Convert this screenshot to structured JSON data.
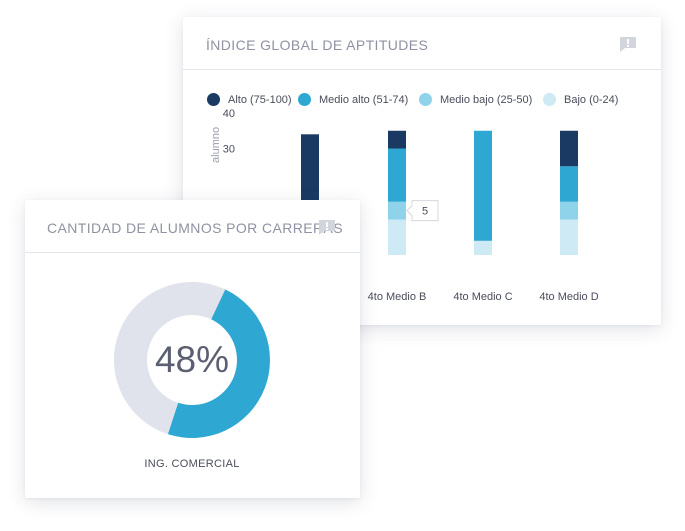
{
  "aptitudes_card": {
    "title": "ÍNDICE GLOBAL DE APTITUDES",
    "comment_icon": "comment-alert-icon"
  },
  "carreras_card": {
    "title": "CANTIDAD DE ALUMNOS POR CARRERAS",
    "comment_icon": "comment-alert-icon",
    "center_value": "48%",
    "segment_label": "ING. COMERCIAL"
  },
  "colors": {
    "alto": "#1a3a63",
    "medio_alto": "#2ea8d2",
    "medio_bajo": "#8fd3ea",
    "bajo": "#cdeaf5",
    "donut_track": "#e0e2ec",
    "donut_fill": "#2ea8d2"
  },
  "chart_data": [
    {
      "type": "bar",
      "stacked": true,
      "title": "ÍNDICE GLOBAL DE APTITUDES",
      "ylabel": "alumno",
      "yticks": [
        30,
        40
      ],
      "ylim": [
        0,
        40
      ],
      "categories": [
        "",
        "4to Medio B",
        "4to Medio C",
        "4to Medio D"
      ],
      "legend": {
        "placement": "top-left"
      },
      "series": [
        {
          "name": "Bajo (0-24)",
          "values": [
            null,
            10,
            4,
            10
          ]
        },
        {
          "name": "Medio bajo (25-50)",
          "values": [
            null,
            5,
            0,
            5
          ]
        },
        {
          "name": "Medio alto (51-74)",
          "values": [
            null,
            15,
            31,
            10
          ]
        },
        {
          "name": "Alto (75-100)",
          "values": [
            null,
            5,
            0,
            10
          ]
        }
      ],
      "visible_top_of_first_bar": 34,
      "tooltip": {
        "category": "4to Medio B",
        "series": "Medio bajo (25-50)",
        "text": "5"
      }
    },
    {
      "type": "pie",
      "donut": true,
      "title": "CANTIDAD DE ALUMNOS POR CARRERAS",
      "slices": [
        {
          "label": "ING. COMERCIAL",
          "value": 48
        },
        {
          "label": "",
          "value": 52
        }
      ],
      "center_text": "48%"
    }
  ]
}
